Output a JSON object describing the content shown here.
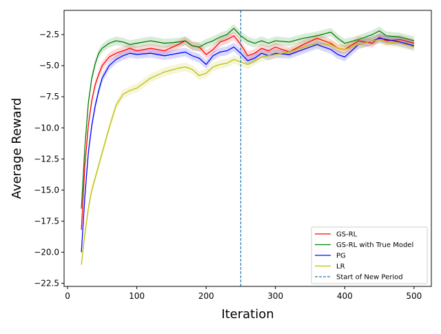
{
  "chart_data": {
    "type": "line",
    "title": "",
    "xlabel": "Iteration",
    "ylabel": "Average Reward",
    "xlim": [
      -5,
      525
    ],
    "ylim": [
      -22.75,
      -0.55
    ],
    "xticks": [
      0,
      100,
      200,
      300,
      400,
      500
    ],
    "xtick_labels": [
      "0",
      "100",
      "200",
      "300",
      "400",
      "500"
    ],
    "yticks": [
      -22.5,
      -20.0,
      -17.5,
      -15.0,
      -12.5,
      -10.0,
      -7.5,
      -5.0,
      -2.5
    ],
    "ytick_labels": [
      "−22.5",
      "−20.0",
      "−17.5",
      "−15.0",
      "−12.5",
      "−10.0",
      "−7.5",
      "−5.0",
      "−2.5"
    ],
    "grid": false,
    "legend_position": "lower-right",
    "shaded_band_halfwidth": 0.35,
    "series": [
      {
        "name": "GS-RL",
        "color": "#ff0000",
        "x": [
          20,
          25,
          30,
          35,
          40,
          45,
          50,
          60,
          70,
          80,
          90,
          100,
          120,
          140,
          160,
          170,
          180,
          190,
          200,
          210,
          220,
          230,
          240,
          250,
          260,
          270,
          280,
          290,
          300,
          320,
          340,
          360,
          380,
          390,
          400,
          420,
          440,
          450,
          460,
          480,
          500
        ],
        "y": [
          -18.2,
          -13.0,
          -9.8,
          -7.8,
          -6.5,
          -5.7,
          -5.0,
          -4.3,
          -4.0,
          -3.8,
          -3.6,
          -3.8,
          -3.6,
          -3.8,
          -3.3,
          -3.0,
          -3.4,
          -3.5,
          -4.1,
          -3.7,
          -3.1,
          -2.9,
          -2.6,
          -3.3,
          -4.2,
          -4.0,
          -3.6,
          -3.8,
          -3.5,
          -3.9,
          -3.3,
          -2.8,
          -3.2,
          -3.6,
          -3.7,
          -3.0,
          -3.2,
          -2.7,
          -3.0,
          -2.9,
          -3.2
        ]
      },
      {
        "name": "GS-RL with True Model",
        "color": "#008000",
        "x": [
          20,
          25,
          30,
          35,
          40,
          45,
          50,
          60,
          70,
          80,
          90,
          100,
          120,
          140,
          160,
          170,
          180,
          190,
          200,
          210,
          220,
          230,
          240,
          250,
          260,
          270,
          280,
          290,
          300,
          320,
          340,
          360,
          380,
          390,
          400,
          420,
          440,
          450,
          460,
          480,
          500
        ],
        "y": [
          -16.5,
          -11.5,
          -8.0,
          -6.0,
          -4.8,
          -4.0,
          -3.6,
          -3.2,
          -3.0,
          -3.1,
          -3.3,
          -3.2,
          -3.0,
          -3.2,
          -3.1,
          -3.0,
          -3.4,
          -3.5,
          -3.2,
          -3.0,
          -2.7,
          -2.5,
          -2.0,
          -2.6,
          -3.0,
          -3.2,
          -3.0,
          -3.2,
          -3.0,
          -3.1,
          -2.8,
          -2.6,
          -2.3,
          -2.8,
          -3.2,
          -2.9,
          -2.5,
          -2.2,
          -2.6,
          -2.7,
          -3.0
        ]
      },
      {
        "name": "PG",
        "color": "#0000ff",
        "x": [
          20,
          25,
          30,
          35,
          40,
          45,
          50,
          60,
          70,
          80,
          90,
          100,
          120,
          140,
          160,
          170,
          180,
          190,
          200,
          210,
          220,
          230,
          240,
          250,
          260,
          270,
          280,
          290,
          300,
          320,
          340,
          360,
          380,
          390,
          400,
          420,
          440,
          450,
          460,
          480,
          500
        ],
        "y": [
          -20.0,
          -15.5,
          -12.0,
          -9.8,
          -8.2,
          -7.0,
          -6.0,
          -5.0,
          -4.5,
          -4.2,
          -4.0,
          -4.1,
          -4.0,
          -4.2,
          -4.0,
          -3.9,
          -4.2,
          -4.4,
          -4.9,
          -4.2,
          -3.9,
          -3.8,
          -3.5,
          -4.0,
          -4.6,
          -4.4,
          -4.0,
          -4.2,
          -4.0,
          -4.1,
          -3.7,
          -3.3,
          -3.7,
          -4.1,
          -4.3,
          -3.3,
          -3.0,
          -2.8,
          -2.9,
          -3.1,
          -3.4
        ]
      },
      {
        "name": "LR",
        "color": "#bfbf00",
        "x": [
          20,
          25,
          30,
          35,
          40,
          45,
          50,
          60,
          70,
          80,
          90,
          100,
          120,
          140,
          160,
          170,
          180,
          190,
          200,
          210,
          220,
          230,
          240,
          250,
          260,
          270,
          280,
          290,
          300,
          320,
          340,
          360,
          380,
          390,
          400,
          420,
          440,
          450,
          460,
          480,
          500
        ],
        "y": [
          -21.0,
          -18.5,
          -16.5,
          -15.0,
          -14.0,
          -13.0,
          -12.0,
          -10.0,
          -8.2,
          -7.3,
          -7.0,
          -6.8,
          -6.0,
          -5.5,
          -5.2,
          -5.1,
          -5.3,
          -5.8,
          -5.6,
          -5.1,
          -4.9,
          -4.8,
          -4.5,
          -4.7,
          -4.9,
          -4.6,
          -4.3,
          -4.2,
          -4.1,
          -3.9,
          -3.5,
          -3.2,
          -3.3,
          -3.6,
          -3.7,
          -3.3,
          -3.0,
          -2.9,
          -3.1,
          -3.2,
          -3.5
        ]
      }
    ],
    "vertical_line": {
      "name": "Start of New Period",
      "x": 250,
      "color": "#1f77b4",
      "style": "dashed"
    }
  }
}
